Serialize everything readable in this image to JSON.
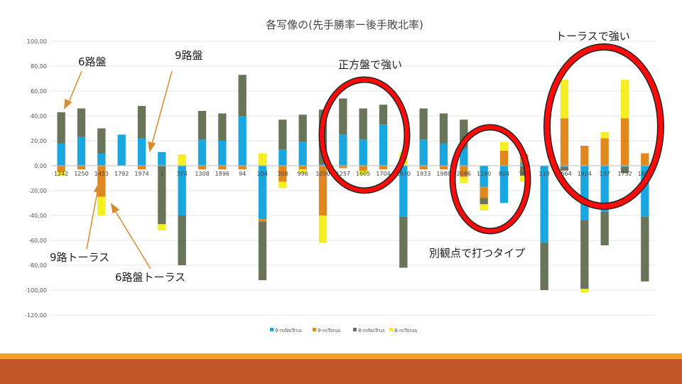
{
  "chart_data": {
    "type": "bar",
    "stacked": true,
    "title": "各写像の(先手勝率ー後手敗北率)",
    "ylim": [
      -120,
      100
    ],
    "yticks": [
      "100,00",
      "80,00",
      "60,00",
      "40,00",
      "20,00",
      "0,00",
      "-20,00",
      "-40,00",
      "-60,00",
      "-80,00",
      "-100,00",
      "-120,00"
    ],
    "categories": [
      "1242",
      "1250",
      "1453",
      "1792",
      "1974",
      "3",
      "374",
      "1308",
      "1896",
      "94",
      "204",
      "308",
      "996",
      "1050",
      "1257",
      "1605",
      "1704",
      "1870",
      "1933",
      "1988",
      "2086",
      "1190",
      "804",
      "747",
      "119",
      "1664",
      "1924",
      "137",
      "1752",
      "1880"
    ],
    "series": [
      {
        "name": "9-roNoTrus",
        "color": "#1aa7e0",
        "values": [
          18,
          23,
          10,
          25,
          22,
          11,
          -40,
          21,
          20,
          40,
          -43,
          13,
          19,
          1,
          25,
          21,
          33,
          -41,
          21,
          18,
          14,
          -17,
          -30,
          2,
          -62,
          -1,
          -44,
          -37,
          -1,
          -41
        ]
      },
      {
        "name": "9-roTorus",
        "color": "#e0881e",
        "values": [
          -5,
          -3,
          -25,
          0,
          -3,
          0,
          0,
          -3,
          -3,
          -3,
          -2,
          -13,
          -3,
          -40,
          -2,
          -4,
          -3,
          0,
          -3,
          -3,
          -9,
          -9,
          12,
          7,
          0,
          38,
          16,
          22,
          38,
          10
        ]
      },
      {
        "name": "8-roNoTrus",
        "color": "#6a7458",
        "values": [
          25,
          23,
          20,
          0,
          26,
          -47,
          -40,
          23,
          22,
          33,
          -47,
          24,
          22,
          44,
          29,
          25,
          16,
          -41,
          25,
          24,
          23,
          -5,
          0,
          -8,
          -38,
          -3,
          -55,
          -27,
          -5,
          -52
        ]
      },
      {
        "name": "8-roTorus",
        "color": "#f4ee22",
        "values": [
          -3,
          0,
          -15,
          0,
          0,
          -5,
          9,
          0,
          0,
          0,
          10,
          -5,
          -3,
          -22,
          0,
          -3,
          0,
          11,
          0,
          0,
          -5,
          -5,
          7,
          -5,
          0,
          31,
          -3,
          5,
          31,
          0
        ]
      }
    ]
  },
  "annotations": {
    "six_board": "6路盤",
    "nine_board": "9路盤",
    "square_strong": "正方盤で強い",
    "torus_strong": "トーラスで強い",
    "nine_torus": "9路トーラス",
    "six_torus": "6路盤トーラス",
    "other_view": "別観点で打つタイプ"
  }
}
